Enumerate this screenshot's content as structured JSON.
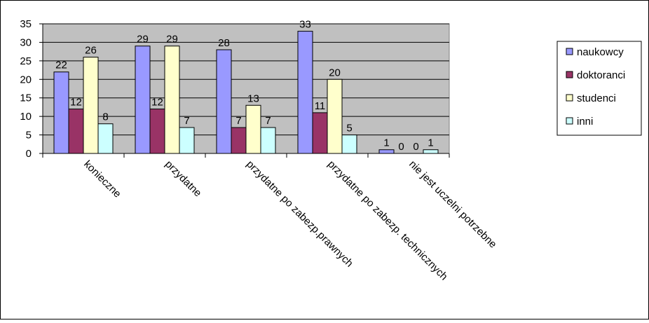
{
  "chart_data": {
    "type": "bar",
    "categories": [
      "konieczne",
      "przydatne",
      "przydatne po zabezp.prawnych",
      "przydatne po zabezp. technicznych",
      "nie jest uczelni potrzebne"
    ],
    "series": [
      {
        "name": "naukowcy",
        "values": [
          22,
          29,
          28,
          33,
          1
        ],
        "color": "#9999ff"
      },
      {
        "name": "doktoranci",
        "values": [
          12,
          12,
          7,
          11,
          0
        ],
        "color": "#993366"
      },
      {
        "name": "studenci",
        "values": [
          26,
          29,
          13,
          20,
          0
        ],
        "color": "#ffffcc"
      },
      {
        "name": "inni",
        "values": [
          8,
          7,
          7,
          5,
          1
        ],
        "color": "#ccffff"
      }
    ],
    "y_ticks": [
      "0",
      "5",
      "10",
      "15",
      "20",
      "25",
      "30",
      "35"
    ],
    "ylim": [
      0,
      35
    ],
    "title": "",
    "xlabel": "",
    "ylabel": "",
    "grid": true,
    "legend_position": "right",
    "colors": {
      "plot_background": "#c0c0c0",
      "gridline": "#000000",
      "bar_border": "#000000"
    }
  }
}
